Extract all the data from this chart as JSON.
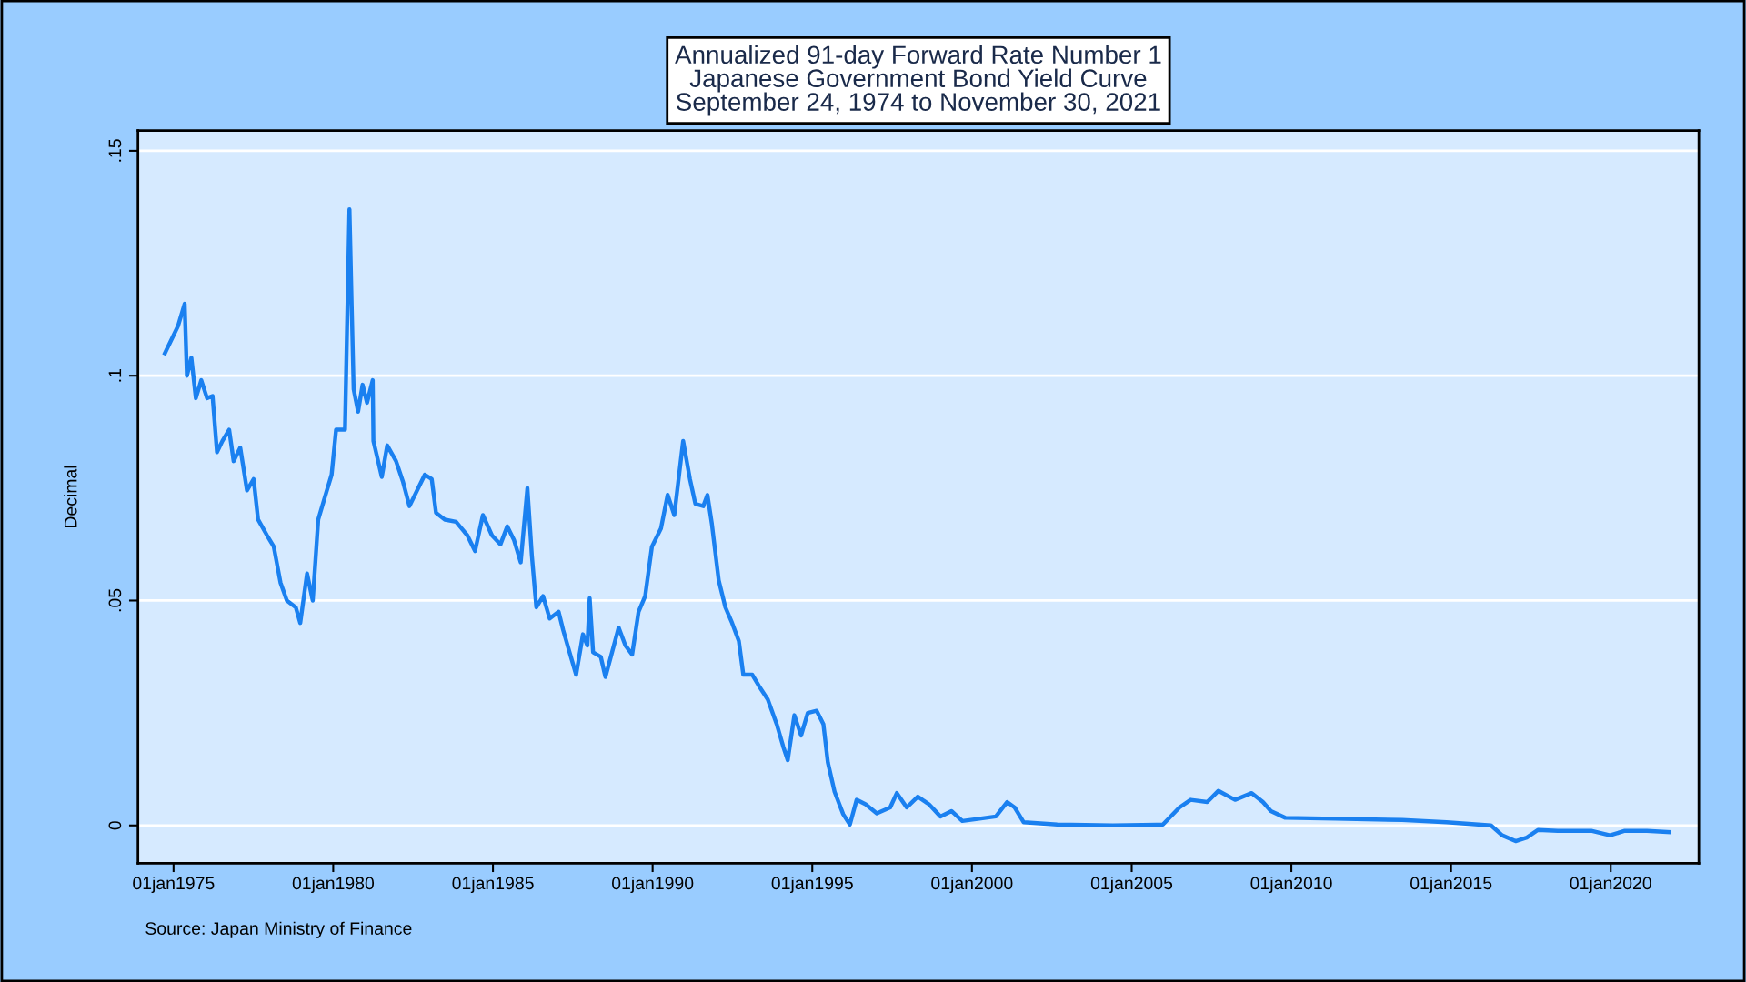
{
  "chart_data": {
    "type": "line",
    "title": "Annualized 91-day Forward Rate Number 1\nJapanese Government Bond Yield Curve\nSeptember 24, 1974 to November 30, 2021",
    "ylabel": "Decimal",
    "annotations": [
      "Source: Japan Ministry of Finance"
    ],
    "x": [
      "1974-09-24",
      "1975-02-20",
      "1975-05-08",
      "1975-06-03",
      "1975-07-24",
      "1975-09-13",
      "1975-11-14",
      "1976-01-19",
      "1976-03-22",
      "1976-05-12",
      "1976-07-13",
      "1976-09-28",
      "1976-11-18",
      "1977-02-02",
      "1977-04-20",
      "1977-07-05",
      "1977-08-25",
      "1977-12-05",
      "1978-02-20",
      "1978-05-08",
      "1978-07-20",
      "1978-10-30",
      "1978-12-20",
      "1979-03-08",
      "1979-05-12",
      "1979-07-14",
      "1979-09-28",
      "1979-12-14",
      "1980-02-03",
      "1980-05-15",
      "1980-07-05",
      "1980-07-31",
      "1980-08-22",
      "1980-10-12",
      "1980-12-02",
      "1981-01-22",
      "1981-03-28",
      "1981-04-05",
      "1981-07-10",
      "1981-09-10",
      "1981-12-20",
      "1982-03-08",
      "1982-05-22",
      "1982-08-18",
      "1982-11-14",
      "1983-02-01",
      "1983-03-22",
      "1983-07-01",
      "1983-11-06",
      "1984-03-14",
      "1984-06-10",
      "1984-09-08",
      "1984-12-20",
      "1985-03-28",
      "1985-06-14",
      "1985-08-29",
      "1985-11-14",
      "1986-01-30",
      "1986-03-22",
      "1986-05-12",
      "1986-07-28",
      "1986-10-12",
      "1987-01-22",
      "1987-03-14",
      "1987-05-27",
      "1987-08-10",
      "1987-10-27",
      "1987-12-17",
      "1988-01-12",
      "1988-02-20",
      "1988-05-18",
      "1988-07-10",
      "1988-09-24",
      "1988-12-09",
      "1989-02-24",
      "1989-05-12",
      "1989-07-24",
      "1989-10-08",
      "1989-12-24",
      "1990-04-06",
      "1990-06-22",
      "1990-09-06",
      "1990-12-16",
      "1991-03-04",
      "1991-05-05",
      "1991-08-04",
      "1991-09-20",
      "1991-11-10",
      "1992-01-27",
      "1992-04-12",
      "1992-06-28",
      "1992-09-13",
      "1992-11-03",
      "1993-02-14",
      "1993-05-01",
      "1993-08-10",
      "1993-11-20",
      "1994-02-03",
      "1994-03-26",
      "1994-06-10",
      "1994-08-26",
      "1994-11-10",
      "1995-02-20",
      "1995-05-08",
      "1995-06-28",
      "1995-09-13",
      "1995-12-20",
      "1996-03-06",
      "1996-05-22",
      "1996-09-02",
      "1997-01-08",
      "1997-06-10",
      "1997-08-25",
      "1997-12-16",
      "1998-04-22",
      "1998-08-28",
      "1999-01-05",
      "1999-05-12",
      "1999-09-13",
      "2000-03-26",
      "2000-10-01",
      "2001-02-06",
      "2001-05-04",
      "2001-08-15",
      "2002-09-02",
      "2004-05-30",
      "2005-12-24",
      "2006-07-01",
      "2006-11-06",
      "2007-05-15",
      "2007-09-20",
      "2008-03-28",
      "2008-10-04",
      "2009-02-10",
      "2009-05-12",
      "2009-10-24",
      "2011-05-18",
      "2013-06-21",
      "2014-11-10",
      "2016-04-02",
      "2016-08-08",
      "2017-01-08",
      "2017-05-16",
      "2017-09-20",
      "2018-05-05",
      "2019-05-23",
      "2019-12-24",
      "2020-06-10",
      "2021-02-18",
      "2021-10-30"
    ],
    "series": [
      {
        "color": "#1a80f0",
        "values": [
          0.105,
          0.111,
          0.116,
          0.1,
          0.104,
          0.095,
          0.099,
          0.095,
          0.0955,
          0.083,
          0.0855,
          0.088,
          0.081,
          0.084,
          0.0745,
          0.077,
          0.068,
          0.0645,
          0.062,
          0.054,
          0.05,
          0.0485,
          0.045,
          0.056,
          0.05,
          0.068,
          0.073,
          0.078,
          0.088,
          0.088,
          0.137,
          0.115,
          0.097,
          0.092,
          0.098,
          0.094,
          0.099,
          0.0855,
          0.0775,
          0.0845,
          0.081,
          0.0765,
          0.071,
          0.0745,
          0.078,
          0.077,
          0.0695,
          0.068,
          0.0675,
          0.0645,
          0.061,
          0.069,
          0.0645,
          0.0625,
          0.0665,
          0.0635,
          0.0585,
          0.075,
          0.06,
          0.0485,
          0.051,
          0.046,
          0.0475,
          0.0435,
          0.0385,
          0.0335,
          0.0425,
          0.04,
          0.0505,
          0.0385,
          0.0375,
          0.033,
          0.0385,
          0.044,
          0.04,
          0.038,
          0.0475,
          0.051,
          0.062,
          0.066,
          0.0735,
          0.069,
          0.0855,
          0.077,
          0.0715,
          0.071,
          0.0735,
          0.067,
          0.0545,
          0.0485,
          0.045,
          0.041,
          0.0335,
          0.0335,
          0.031,
          0.028,
          0.0225,
          0.0175,
          0.0145,
          0.0245,
          0.02,
          0.025,
          0.0255,
          0.0225,
          0.014,
          0.0075,
          0.0025,
          0.0002,
          0.0057,
          0.0047,
          0.0027,
          0.004,
          0.0072,
          0.004,
          0.0064,
          0.0047,
          0.002,
          0.0032,
          0.001,
          0.0015,
          0.002,
          0.0052,
          0.004,
          0.0007,
          0.0002,
          0.0,
          0.0002,
          0.004,
          0.0057,
          0.0052,
          0.0077,
          0.0057,
          0.0072,
          0.0052,
          0.0032,
          0.0017,
          0.0015,
          0.0012,
          0.0007,
          0.0,
          -0.0022,
          -0.0035,
          -0.0027,
          -0.001,
          -0.0012,
          -0.0012,
          -0.0022,
          -0.0012,
          -0.0012,
          -0.0015
        ]
      }
    ],
    "xlim": [
      "1973-11-20",
      "2022-10-05"
    ],
    "xticks": [
      {
        "value": "1975-01-01",
        "label": "01jan1975"
      },
      {
        "value": "1980-01-01",
        "label": "01jan1980"
      },
      {
        "value": "1985-01-01",
        "label": "01jan1985"
      },
      {
        "value": "1990-01-01",
        "label": "01jan1990"
      },
      {
        "value": "1995-01-01",
        "label": "01jan1995"
      },
      {
        "value": "2000-01-01",
        "label": "01jan2000"
      },
      {
        "value": "2005-01-01",
        "label": "01jan2005"
      },
      {
        "value": "2010-01-01",
        "label": "01jan2010"
      },
      {
        "value": "2015-01-01",
        "label": "01jan2015"
      },
      {
        "value": "2020-01-01",
        "label": "01jan2020"
      }
    ],
    "ylim": [
      -0.0084,
      0.1545
    ],
    "yticks": [
      {
        "value": 0,
        "label": "0"
      },
      {
        "value": 0.05,
        "label": ".05"
      },
      {
        "value": 0.1,
        "label": ".1"
      },
      {
        "value": 0.15,
        "label": ".15"
      }
    ],
    "grid": "y",
    "marker": "none",
    "line_style": "solid"
  }
}
